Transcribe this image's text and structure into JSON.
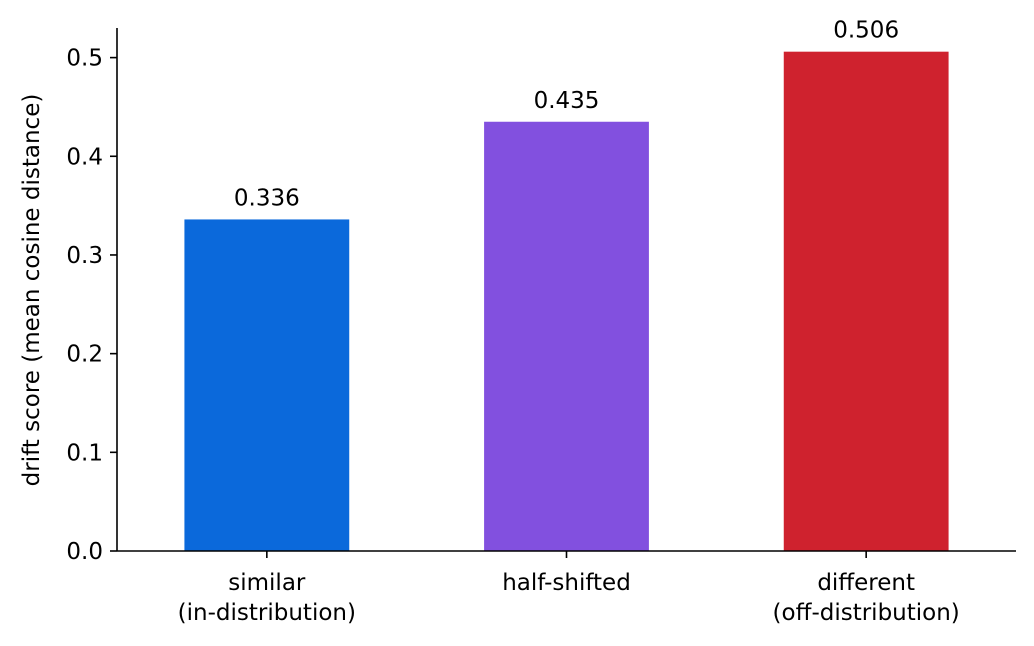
{
  "chart_data": {
    "type": "bar",
    "categories": [
      [
        "similar",
        "(in-distribution)"
      ],
      [
        "half-shifted"
      ],
      [
        "different",
        "(off-distribution)"
      ]
    ],
    "values": [
      0.336,
      0.435,
      0.506
    ],
    "value_labels": [
      "0.336",
      "0.435",
      "0.506"
    ],
    "colors": [
      "#0b69db",
      "#8250df",
      "#cf222e"
    ],
    "title": "",
    "xlabel": "",
    "ylabel": "drift score (mean cosine distance)",
    "ylim": [
      0,
      0.53
    ],
    "yticks": [
      0.0,
      0.1,
      0.2,
      0.3,
      0.4,
      0.5
    ],
    "ytick_labels": [
      "0.0",
      "0.1",
      "0.2",
      "0.3",
      "0.4",
      "0.5"
    ],
    "grid": false,
    "legend": "none"
  }
}
